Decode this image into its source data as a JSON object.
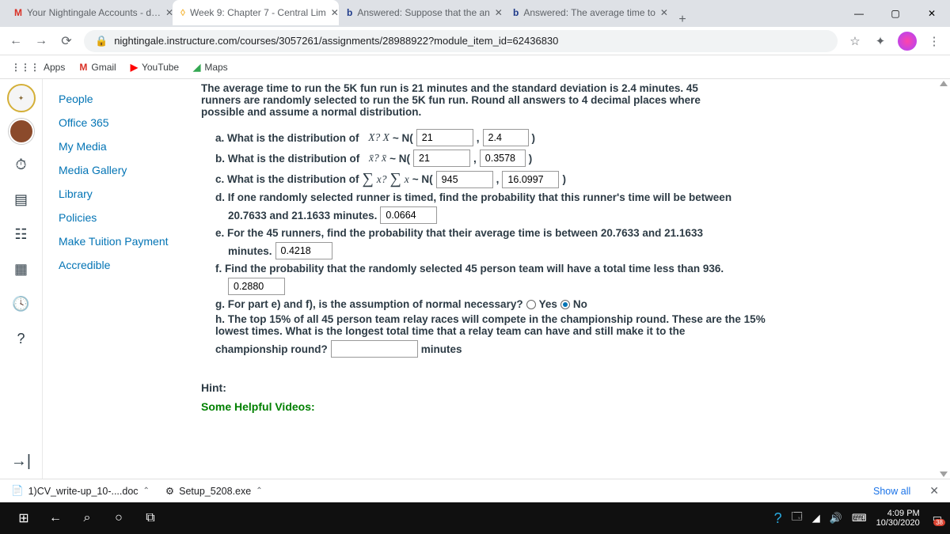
{
  "tabs": [
    {
      "favicon": "M",
      "favcolor": "#d93025",
      "title": "Your Nightingale Accounts - d…"
    },
    {
      "favicon": "◊",
      "favcolor": "#f5b941",
      "title": "Week 9: Chapter 7 - Central Lim"
    },
    {
      "favicon": "b",
      "favcolor": "#1e3a8a",
      "title": "Answered: Suppose that the an"
    },
    {
      "favicon": "b",
      "favcolor": "#1e3a8a",
      "title": "Answered: The average time to"
    }
  ],
  "activeTab": 1,
  "url": "nightingale.instructure.com/courses/3057261/assignments/28988922?module_item_id=62436830",
  "bookmarks": [
    {
      "icon": "⋮⋮⋮",
      "label": "Apps",
      "color": "#5f6368"
    },
    {
      "icon": "M",
      "label": "Gmail",
      "color": "#d93025"
    },
    {
      "icon": "▶",
      "label": "YouTube",
      "color": "#ff0000"
    },
    {
      "icon": "◢",
      "label": "Maps",
      "color": "#34a853"
    }
  ],
  "courseNav": [
    "People",
    "Office 365",
    "My Media",
    "Media Gallery",
    "Library",
    "Policies",
    "Make Tuition Payment",
    "Accredible"
  ],
  "problem": {
    "intro": "The average time to run the 5K fun run is 21 minutes and the standard deviation is 2.4 minutes. 45 runners are randomly selected to run the 5K fun run. Round all answers to 4 decimal places where possible and assume a normal distribution.",
    "a": {
      "text": "a. What is the distribution of",
      "v1": "21",
      "v2": "2.4"
    },
    "b": {
      "text": "b. What is the distribution of",
      "v1": "21",
      "v2": "0.3578"
    },
    "c": {
      "text": "c. What is the distribution of",
      "v1": "945",
      "v2": "16.0997"
    },
    "d": {
      "text": "d. If one randomly selected runner is timed, find the probability that this runner's time will be between",
      "range": "20.7633 and 21.1633 minutes.",
      "ans": "0.0664"
    },
    "e": {
      "text": "e. For the 45 runners, find the probability that their average time is between 20.7633 and 21.1633",
      "unit": "minutes.",
      "ans": "0.4218"
    },
    "f": {
      "text": "f. Find the probability that the randomly selected 45 person team will have a total time less than 936.",
      "ans": "0.2880"
    },
    "g": {
      "text": "g. For part e) and f), is the assumption of normal necessary?",
      "yes": "Yes",
      "no": "No"
    },
    "h": {
      "text": "h. The top 15% of all 45 person team relay races will compete in the championship round. These are the 15% lowest times. What is the longest total time that a relay team can have and still make it to the championship round?",
      "unit": "minutes"
    }
  },
  "hintTitle": "Hint:",
  "videosTitle": "Some Helpful Videos:",
  "downloads": [
    {
      "icon": "📄",
      "name": "1)CV_write-up_10-....doc"
    },
    {
      "icon": "⚙",
      "name": "Setup_5208.exe"
    }
  ],
  "showAll": "Show all",
  "clock": {
    "time": "4:09 PM",
    "date": "10/30/2020"
  },
  "notifCount": "38"
}
